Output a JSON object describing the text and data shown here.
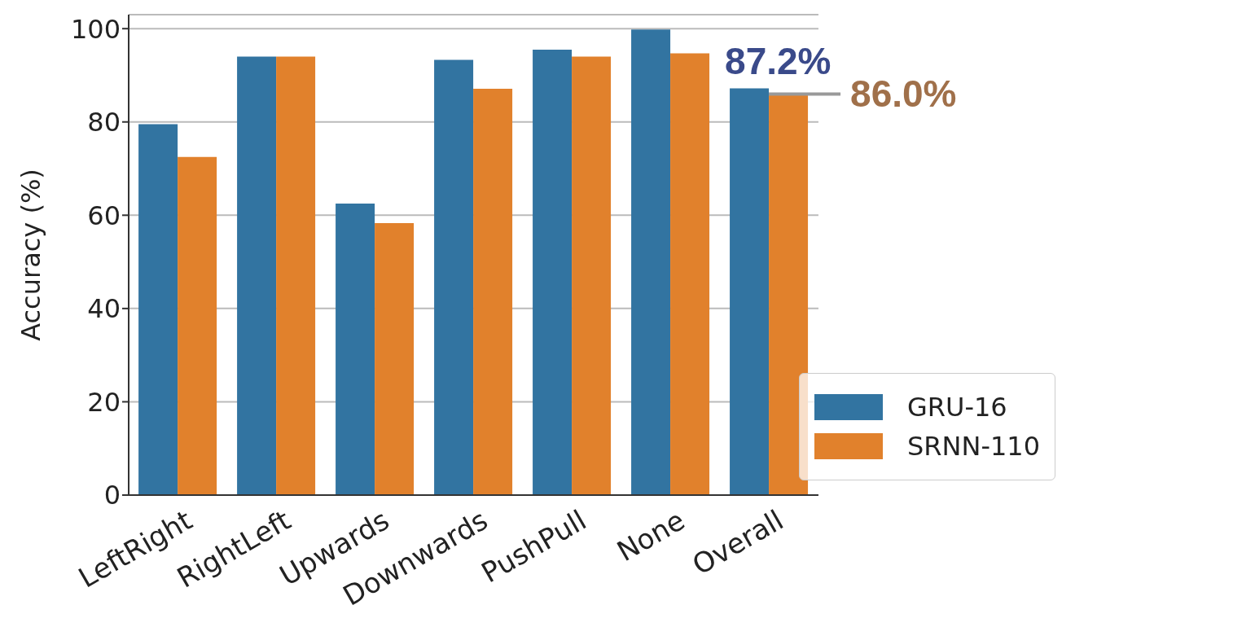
{
  "chart_data": {
    "type": "bar",
    "ylabel": "Accuracy (%)",
    "categories": [
      "LeftRight",
      "RightLeft",
      "Upwards",
      "Downwards",
      "PushPull",
      "None",
      "Overall"
    ],
    "series": [
      {
        "name": "GRU-16",
        "color": "#3274a1",
        "values": [
          79.5,
          94.0,
          62.5,
          93.3,
          95.5,
          99.8,
          87.2
        ],
        "value_labels": [
          null,
          null,
          null,
          null,
          null,
          null,
          "87.2%"
        ]
      },
      {
        "name": "SRNN-110",
        "color": "#e1812c",
        "values": [
          72.5,
          94.0,
          58.3,
          87.1,
          94.0,
          94.7,
          86.0
        ],
        "value_labels": [
          null,
          null,
          null,
          null,
          null,
          null,
          "86.0%"
        ]
      }
    ],
    "ylim": [
      0,
      103
    ],
    "yticks": [
      0,
      20,
      40,
      60,
      80,
      100
    ],
    "grid": "y",
    "legend": "bottom right"
  }
}
